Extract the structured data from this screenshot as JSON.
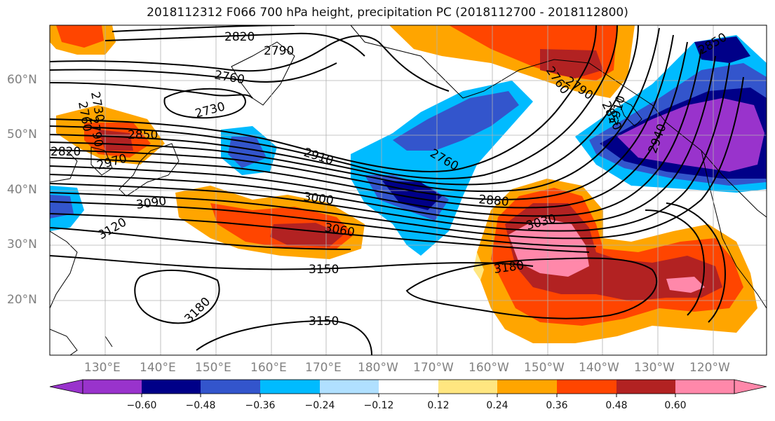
{
  "title": "2018112312 F066 700 hPa height, precipitation PC (2018112700 - 2018112800)",
  "lat_labels": [
    "60°N",
    "50°N",
    "40°N",
    "30°N",
    "20°N"
  ],
  "lon_labels": [
    "130°E",
    "140°E",
    "150°E",
    "160°E",
    "170°E",
    "180°W",
    "170°W",
    "160°W",
    "150°W",
    "140°W",
    "130°W",
    "120°W"
  ],
  "contour_labels": [
    "2820",
    "2790",
    "2760",
    "2730",
    "2730",
    "2760",
    "2790",
    "2820",
    "2850",
    "2970",
    "2910",
    "2760",
    "3000",
    "3090",
    "3120",
    "3060",
    "2880",
    "3030",
    "3150",
    "3180",
    "3180",
    "3150",
    "2760",
    "2790",
    "2850",
    "2910",
    "2940",
    "2850"
  ],
  "colorbar": {
    "ticks": [
      "−0.60",
      "−0.48",
      "−0.36",
      "−0.24",
      "−0.12",
      "0.12",
      "0.24",
      "0.36",
      "0.48",
      "0.60"
    ],
    "colors": [
      "#9933cc",
      "#000088",
      "#3355cc",
      "#00bbff",
      "#b0e0ff",
      "#ffffff",
      "#ffe680",
      "#ffa500",
      "#ff4500",
      "#b22222",
      "#ff88aa"
    ]
  }
}
